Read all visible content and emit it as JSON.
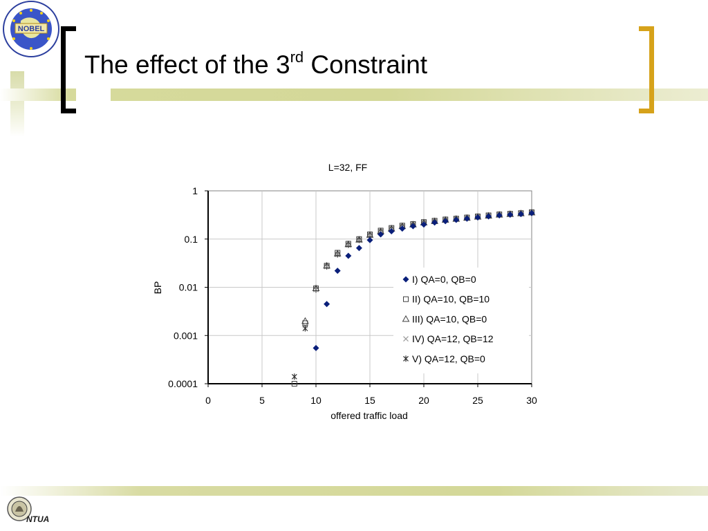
{
  "slide": {
    "title_main": "The effect of the 3",
    "title_sup": "rd",
    "title_end": " Constraint"
  },
  "logo_top": {
    "text": "NOBEL",
    "icon": "nobel-logo-icon"
  },
  "logo_bottom": {
    "text": "NTUA",
    "icon": "ntua-logo-icon"
  },
  "colors": {
    "accent_bracket": "#d6a21a",
    "band": "#d4d898",
    "series_I": "#0a1f7a",
    "gray_markers": "#555555"
  },
  "chart_data": {
    "type": "scatter",
    "title": "L=32, FF",
    "xlabel": "offered traffic load",
    "ylabel": "BP",
    "xlim": [
      0,
      30
    ],
    "ylim": [
      0.0001,
      1
    ],
    "yscale": "log",
    "xticks": [
      "0",
      "5",
      "10",
      "15",
      "20",
      "25",
      "30"
    ],
    "yticks": [
      "1",
      "0.1",
      "0.01",
      "0.001",
      "0.0001"
    ],
    "grid": true,
    "legend_position": "right",
    "series": [
      {
        "name": "I) QA=0, QB=0",
        "marker": "diamond",
        "x": [
          10,
          11,
          12,
          13,
          14,
          15,
          16,
          17,
          18,
          19,
          20,
          21,
          22,
          23,
          24,
          25,
          26,
          27,
          28,
          29,
          30
        ],
        "y": [
          0.00055,
          0.0045,
          0.022,
          0.045,
          0.065,
          0.095,
          0.125,
          0.145,
          0.165,
          0.185,
          0.2,
          0.22,
          0.235,
          0.25,
          0.265,
          0.28,
          0.295,
          0.31,
          0.32,
          0.33,
          0.345
        ]
      },
      {
        "name": "II) QA=10, QB=10",
        "marker": "square",
        "x": [
          8,
          9,
          10,
          11,
          12,
          13,
          14,
          15,
          16,
          17,
          18,
          19,
          20,
          21,
          22,
          23,
          24,
          25,
          26,
          27,
          28,
          29,
          30
        ],
        "y": [
          0.0001,
          0.0018,
          0.0095,
          0.028,
          0.052,
          0.08,
          0.1,
          0.125,
          0.15,
          0.17,
          0.19,
          0.205,
          0.225,
          0.24,
          0.255,
          0.265,
          0.28,
          0.295,
          0.31,
          0.325,
          0.335,
          0.345,
          0.36
        ]
      },
      {
        "name": "III) QA=10, QB=0",
        "marker": "triangle",
        "x": [
          9,
          10,
          11,
          12,
          13,
          14,
          15,
          16,
          17,
          18,
          19,
          20,
          21,
          22,
          23,
          24,
          25,
          26,
          27,
          28,
          29,
          30
        ],
        "y": [
          0.002,
          0.0095,
          0.028,
          0.05,
          0.078,
          0.097,
          0.122,
          0.145,
          0.165,
          0.185,
          0.2,
          0.22,
          0.235,
          0.25,
          0.262,
          0.275,
          0.29,
          0.305,
          0.32,
          0.33,
          0.34,
          0.355
        ]
      },
      {
        "name": "IV) QA=12, QB=12",
        "marker": "x",
        "x": [
          9,
          10,
          11,
          12,
          13,
          14,
          15,
          16,
          17,
          18,
          19,
          20,
          21,
          22,
          23,
          24,
          25,
          26,
          27,
          28,
          29,
          30
        ],
        "y": [
          0.0016,
          0.009,
          0.027,
          0.048,
          0.075,
          0.095,
          0.12,
          0.143,
          0.163,
          0.183,
          0.198,
          0.218,
          0.232,
          0.248,
          0.26,
          0.272,
          0.288,
          0.302,
          0.316,
          0.328,
          0.338,
          0.352
        ]
      },
      {
        "name": "V) QA=12, QB=0",
        "marker": "asterisk",
        "x": [
          8,
          9,
          10,
          11,
          12,
          13,
          14,
          15,
          16,
          17,
          18,
          19,
          20,
          21,
          22,
          23,
          24,
          25,
          26,
          27,
          28,
          29,
          30
        ],
        "y": [
          0.00014,
          0.0014,
          0.009,
          0.027,
          0.048,
          0.076,
          0.096,
          0.121,
          0.144,
          0.164,
          0.184,
          0.199,
          0.219,
          0.233,
          0.249,
          0.261,
          0.273,
          0.289,
          0.303,
          0.317,
          0.329,
          0.339,
          0.353
        ]
      }
    ]
  }
}
